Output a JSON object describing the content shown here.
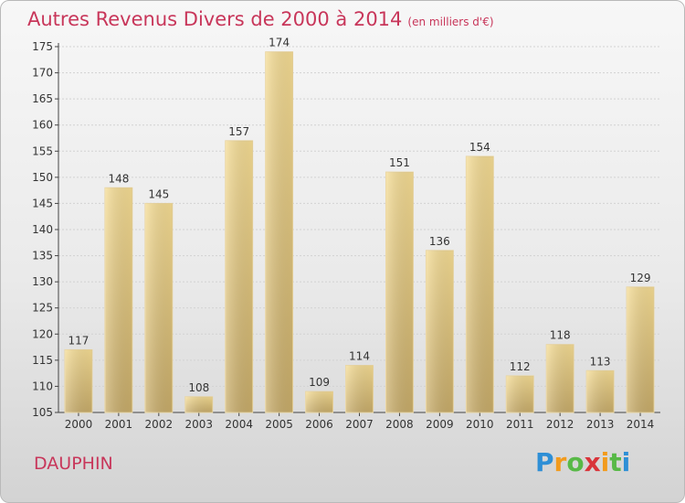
{
  "title": "Autres Revenus Divers de 2000 à 2014",
  "unit_note": "(en milliers d'€)",
  "commune": "DAUPHIN",
  "logo": {
    "letters": [
      "P",
      "r",
      "o",
      "x",
      "i",
      "t",
      "i"
    ],
    "colors": [
      "#2e8fd6",
      "#f29b1d",
      "#58b947",
      "#d9343a",
      "#f29b1d",
      "#58b947",
      "#2e8fd6"
    ]
  },
  "chart_data": {
    "type": "bar",
    "categories": [
      "2000",
      "2001",
      "2002",
      "2003",
      "2004",
      "2005",
      "2006",
      "2007",
      "2008",
      "2009",
      "2010",
      "2011",
      "2012",
      "2013",
      "2014"
    ],
    "values": [
      117,
      148,
      145,
      108,
      157,
      174,
      109,
      114,
      151,
      136,
      154,
      112,
      118,
      113,
      129
    ],
    "ylim": [
      105,
      175
    ],
    "yticks": [
      105,
      110,
      115,
      120,
      125,
      130,
      135,
      140,
      145,
      150,
      155,
      160,
      165,
      170,
      175
    ],
    "grid": true,
    "bar_color_top": "#f6dd94",
    "bar_color_bottom": "#c9ad6a"
  }
}
